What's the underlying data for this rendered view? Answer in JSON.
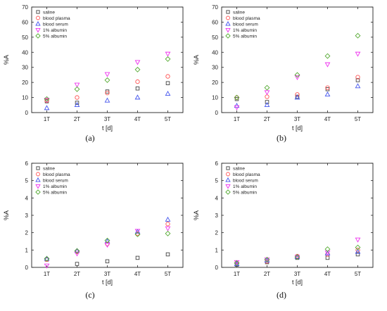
{
  "chart_data": [
    {
      "type": "scatter",
      "caption": "(a)",
      "xlabel": "t  [d]",
      "ylabel": "%A",
      "categories": [
        "1T",
        "2T",
        "3T",
        "4T",
        "5T"
      ],
      "ylim": [
        0,
        70
      ],
      "yticks": [
        0,
        10,
        20,
        30,
        40,
        50,
        60,
        70
      ],
      "legend_position": "top-left",
      "series": [
        {
          "name": "saline",
          "marker": "square",
          "color": "#444444",
          "values": [
            7.5,
            6.5,
            14,
            16,
            19.5
          ]
        },
        {
          "name": "blood plasma",
          "marker": "circle",
          "color": "#ff5555",
          "values": [
            8,
            10,
            13,
            20.5,
            24
          ]
        },
        {
          "name": "blood serum",
          "marker": "triangle-up",
          "color": "#4455ee",
          "values": [
            3,
            5,
            8,
            10,
            12.5
          ]
        },
        {
          "name": "1% albumin",
          "marker": "triangle-down",
          "color": "#ee33ee",
          "values": [
            8.5,
            18.5,
            25.5,
            33.5,
            39
          ]
        },
        {
          "name": "5% albumin",
          "marker": "diamond",
          "color": "#55aa33",
          "values": [
            9,
            15.5,
            21.5,
            28.5,
            35.5
          ]
        }
      ]
    },
    {
      "type": "scatter",
      "caption": "(b)",
      "xlabel": "t  [d]",
      "ylabel": "%A",
      "categories": [
        "1T",
        "2T",
        "3T",
        "4T",
        "5T"
      ],
      "ylim": [
        0,
        70
      ],
      "yticks": [
        0,
        10,
        20,
        30,
        40,
        50,
        60,
        70
      ],
      "legend_position": "top-left",
      "series": [
        {
          "name": "saline",
          "marker": "square",
          "color": "#444444",
          "values": [
            9,
            7,
            10.5,
            15.5,
            21.5
          ]
        },
        {
          "name": "blood plasma",
          "marker": "circle",
          "color": "#ff5555",
          "values": [
            10,
            10.5,
            12,
            16.5,
            23.5
          ]
        },
        {
          "name": "blood serum",
          "marker": "triangle-up",
          "color": "#4455ee",
          "values": [
            4.5,
            5,
            10,
            12,
            17.5
          ]
        },
        {
          "name": "1% albumin",
          "marker": "triangle-down",
          "color": "#ee33ee",
          "values": [
            3.5,
            13.5,
            23.5,
            32,
            39
          ]
        },
        {
          "name": "5% albumin",
          "marker": "diamond",
          "color": "#55aa33",
          "values": [
            10,
            16.5,
            25,
            37.5,
            51
          ]
        }
      ]
    },
    {
      "type": "scatter",
      "caption": "(c)",
      "xlabel": "t  [d]",
      "ylabel": "%A",
      "categories": [
        "1T",
        "2T",
        "3T",
        "4T",
        "5T"
      ],
      "ylim": [
        0,
        6
      ],
      "yticks": [
        0,
        1,
        2,
        3,
        4,
        5,
        6
      ],
      "legend_position": "top-left",
      "series": [
        {
          "name": "saline",
          "marker": "square",
          "color": "#444444",
          "values": [
            0.45,
            0.2,
            0.35,
            0.55,
            0.75
          ]
        },
        {
          "name": "blood plasma",
          "marker": "circle",
          "color": "#ff5555",
          "values": [
            0.45,
            0.9,
            1.35,
            1.95,
            2.5
          ]
        },
        {
          "name": "blood serum",
          "marker": "triangle-up",
          "color": "#4455ee",
          "values": [
            0.5,
            0.95,
            1.5,
            2.05,
            2.75
          ]
        },
        {
          "name": "1% albumin",
          "marker": "triangle-down",
          "color": "#ee33ee",
          "values": [
            0.1,
            0.8,
            1.3,
            2.1,
            2.25
          ]
        },
        {
          "name": "5% albumin",
          "marker": "diamond",
          "color": "#55aa33",
          "values": [
            0.5,
            0.95,
            1.55,
            1.9,
            1.95
          ]
        }
      ]
    },
    {
      "type": "scatter",
      "caption": "(d)",
      "xlabel": "t  [d]",
      "ylabel": "%A",
      "categories": [
        "1T",
        "2T",
        "3T",
        "4T",
        "5T"
      ],
      "ylim": [
        0,
        6
      ],
      "yticks": [
        0,
        1,
        2,
        3,
        4,
        5,
        6
      ],
      "legend_position": "top-left",
      "series": [
        {
          "name": "saline",
          "marker": "square",
          "color": "#444444",
          "values": [
            0.15,
            0.3,
            0.55,
            0.55,
            0.75
          ]
        },
        {
          "name": "blood plasma",
          "marker": "circle",
          "color": "#ff5555",
          "values": [
            0.25,
            0.35,
            0.65,
            0.75,
            1.0
          ]
        },
        {
          "name": "blood serum",
          "marker": "triangle-up",
          "color": "#4455ee",
          "values": [
            0.2,
            0.4,
            0.6,
            0.8,
            0.9
          ]
        },
        {
          "name": "1% albumin",
          "marker": "triangle-down",
          "color": "#ee33ee",
          "values": [
            0.3,
            0.45,
            0.6,
            0.85,
            1.6
          ]
        },
        {
          "name": "5% albumin",
          "marker": "diamond",
          "color": "#55aa33",
          "values": [
            0.25,
            0.45,
            0.6,
            1.05,
            1.15
          ]
        }
      ]
    }
  ]
}
